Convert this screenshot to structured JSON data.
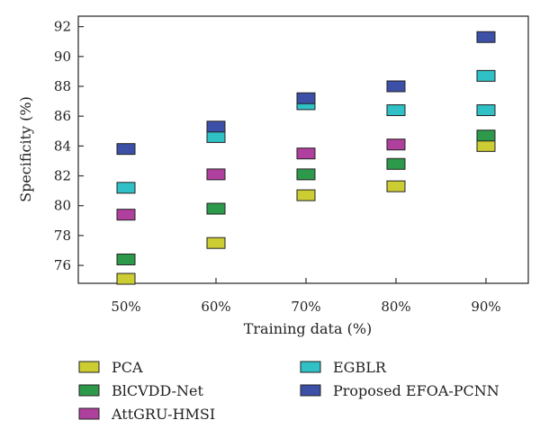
{
  "chart_data": {
    "type": "scatter",
    "title": "",
    "xlabel": "Training data (%)",
    "ylabel": "Specificity (%)",
    "categories": [
      "50%",
      "60%",
      "70%",
      "80%",
      "90%"
    ],
    "ylim": [
      74.8,
      92.7
    ],
    "yticks": [
      76,
      78,
      80,
      82,
      84,
      86,
      88,
      90,
      92
    ],
    "grid": false,
    "legend_position": "bottom",
    "series": [
      {
        "name": "PCA",
        "color": "#cccc33",
        "values": [
          75.1,
          77.5,
          80.7,
          81.3,
          84.0
        ]
      },
      {
        "name": "BlCVDD-Net",
        "color": "#2d9a4b",
        "values": [
          76.4,
          79.8,
          82.1,
          82.8,
          84.7
        ]
      },
      {
        "name": "AttGRU-HMSI",
        "color": "#b0409e",
        "values": [
          79.4,
          82.1,
          83.5,
          84.1,
          null
        ]
      },
      {
        "name": "EGBLR",
        "color": "#2fc1c6",
        "values": [
          81.2,
          84.6,
          86.8,
          86.4,
          86.4
        ]
      },
      {
        "name": "Proposed EFOA-PCNN",
        "color": "#3d50a8",
        "values": [
          83.8,
          85.3,
          87.2,
          88.0,
          91.3
        ]
      }
    ],
    "extra_points": [
      {
        "series": "EGBLR",
        "category": "90%",
        "value": 88.7
      }
    ]
  }
}
